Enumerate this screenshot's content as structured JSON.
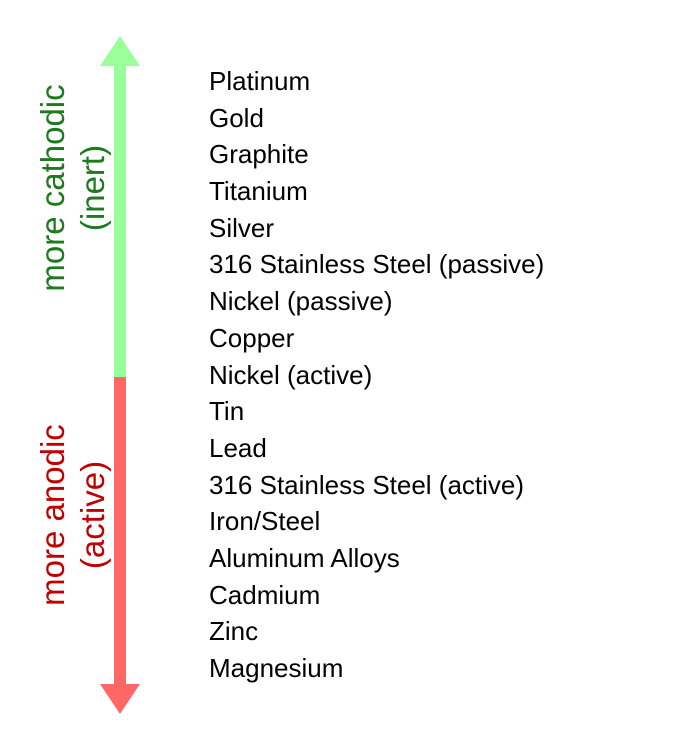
{
  "labels": {
    "cathodic_line1": "more cathodic",
    "cathodic_line2": "(inert)",
    "anodic_line1": "more anodic",
    "anodic_line2": "(active)"
  },
  "colors": {
    "cathodic_arrow": "#99ff99",
    "anodic_arrow": "#ff6666",
    "cathodic_text": "#1e7a1e",
    "anodic_text": "#c00000"
  },
  "metals": [
    "Platinum",
    "Gold",
    "Graphite",
    "Titanium",
    "Silver",
    "316 Stainless Steel (passive)",
    "Nickel (passive)",
    "Copper",
    "Nickel (active)",
    "Tin",
    "Lead",
    "316 Stainless Steel (active)",
    "Iron/Steel",
    "Aluminum Alloys",
    "Cadmium",
    "Zinc",
    "Magnesium"
  ]
}
